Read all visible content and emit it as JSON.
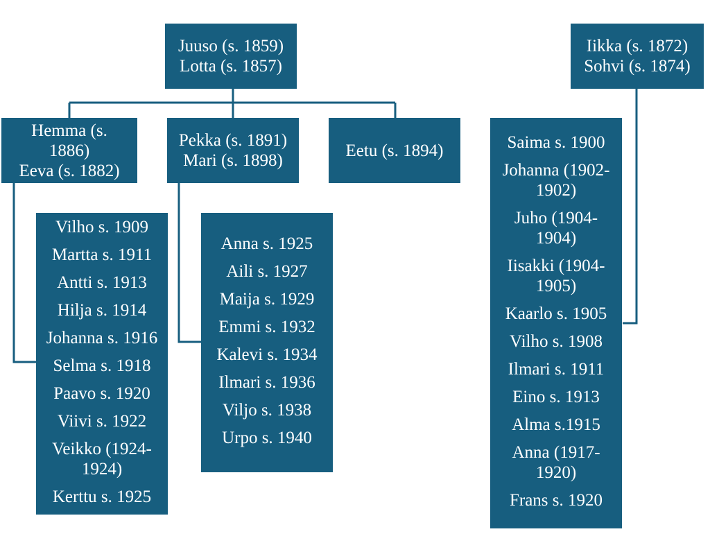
{
  "colors": {
    "box_fill": "#175e7f",
    "text": "#ffffff",
    "connector": "#175e7f"
  },
  "families": {
    "juuso": {
      "line1": "Juuso (s. 1859)",
      "line2": "Lotta (s. 1857)"
    },
    "iikka": {
      "line1": "Iikka (s. 1872)",
      "line2": "Sohvi (s. 1874)"
    },
    "hemma": {
      "line1": "Hemma (s.",
      "line2": "1886)",
      "line3": "Eeva (s. 1882)"
    },
    "pekka": {
      "line1": "Pekka (s. 1891)",
      "line2": "Mari (s. 1898)"
    },
    "eetu": {
      "line1": "Eetu (s. 1894)"
    }
  },
  "children": {
    "hemma": [
      "Vilho s. 1909",
      "Martta s. 1911",
      "Antti s. 1913",
      "Hilja s. 1914",
      "Johanna s. 1916",
      "Selma s. 1918",
      "Paavo s. 1920",
      "Viivi s. 1922",
      "Veikko (1924-\n1924)",
      "Kerttu s. 1925"
    ],
    "pekka": [
      "Anna s. 1925",
      "Aili s. 1927",
      "Maija s. 1929",
      "Emmi s. 1932",
      "Kalevi s. 1934",
      "Ilmari s. 1936",
      "Viljo s. 1938",
      "Urpo s. 1940"
    ],
    "iikka": [
      "Saima s. 1900",
      "Johanna (1902-\n1902)",
      "Juho (1904-\n1904)",
      "Iisakki (1904-\n1905)",
      "Kaarlo s. 1905",
      "Vilho s. 1908",
      "Ilmari s. 1911",
      "Eino s. 1913",
      "Alma s.1915",
      "Anna (1917-\n1920)",
      "Frans s. 1920"
    ]
  }
}
